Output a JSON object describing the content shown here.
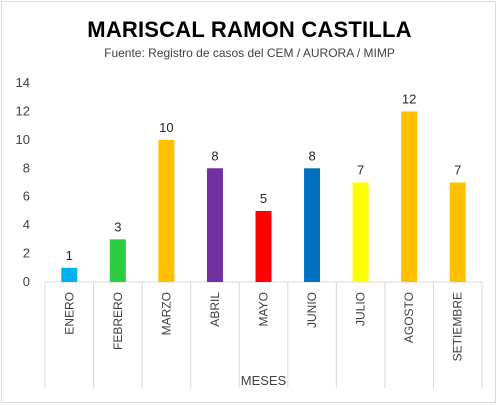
{
  "chart_data": {
    "type": "bar",
    "title": "MARISCAL RAMON CASTILLA",
    "subtitle": "Fuente: Registro de casos del CEM / AURORA / MIMP",
    "xlabel": "MESES",
    "ylabel": "",
    "ylim": [
      0,
      14
    ],
    "yticks": [
      0,
      2,
      4,
      6,
      8,
      10,
      12,
      14
    ],
    "grid": false,
    "categories": [
      "ENERO",
      "FEBRERO",
      "MARZO",
      "ABRIL",
      "MAYO",
      "JUNIO",
      "JULIO",
      "AGOSTO",
      "SETIEMBRE"
    ],
    "values": [
      1,
      3,
      10,
      8,
      5,
      8,
      7,
      12,
      7
    ],
    "colors": [
      "#00b0f0",
      "#2ecc40",
      "#ffc000",
      "#7030a0",
      "#ff0000",
      "#0070c0",
      "#ffff00",
      "#ffc000",
      "#ffc000"
    ],
    "axis_color": "#d9d9d9",
    "text_color": "#404040"
  }
}
